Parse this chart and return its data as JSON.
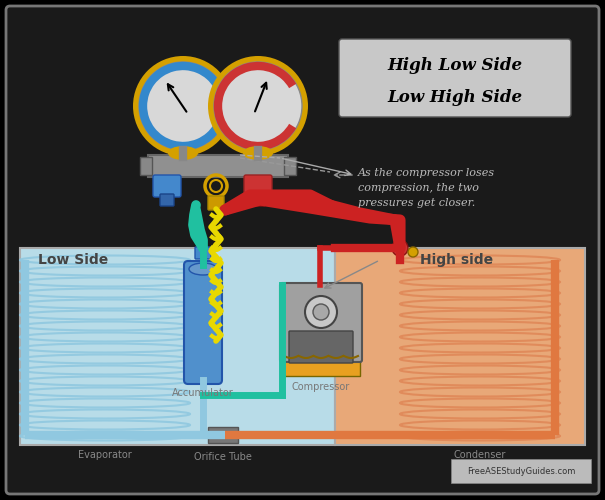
{
  "bg_color": "#000000",
  "border_color": "#888888",
  "title_box_color": "#c8c8c8",
  "title_line1": "High Low Side",
  "title_line2": "Low High Side",
  "annotation_text": "As the compressor loses\ncompression, the two\npressures get closer.",
  "low_side_label": "Low Side",
  "high_side_label": "High side",
  "evaporator_label": "Evaporator",
  "accumulator_label": "Accumulator",
  "compressor_label": "Compressor",
  "orifice_label": "Orifice Tube",
  "condenser_label": "Condenser",
  "watermark": "FreeASEStudyGuides.com",
  "low_side_bg": "#b8dce8",
  "high_side_bg": "#e8a878",
  "evap_coil_color": "#90c8e0",
  "cond_coil_color": "#e08858",
  "accumulator_body": "#5090cc",
  "compressor_base_color": "#e8a020",
  "red_hose_color": "#cc2222",
  "teal_hose_color": "#20c0a0",
  "yellow_hose_color": "#e8d800",
  "gauge_gold": "#d4a000",
  "gauge_left_ring": "#3388cc",
  "gauge_right_ring": "#cc3333",
  "gauge_face": "#d8d8d8",
  "manifold_color": "#909090",
  "pipe_orange": "#e07840",
  "pipe_blue": "#90c8e0",
  "connector_blue": "#4488cc",
  "connector_red": "#cc3333",
  "connector_gold": "#d4a000",
  "inner_bg": "#1a1a1a"
}
